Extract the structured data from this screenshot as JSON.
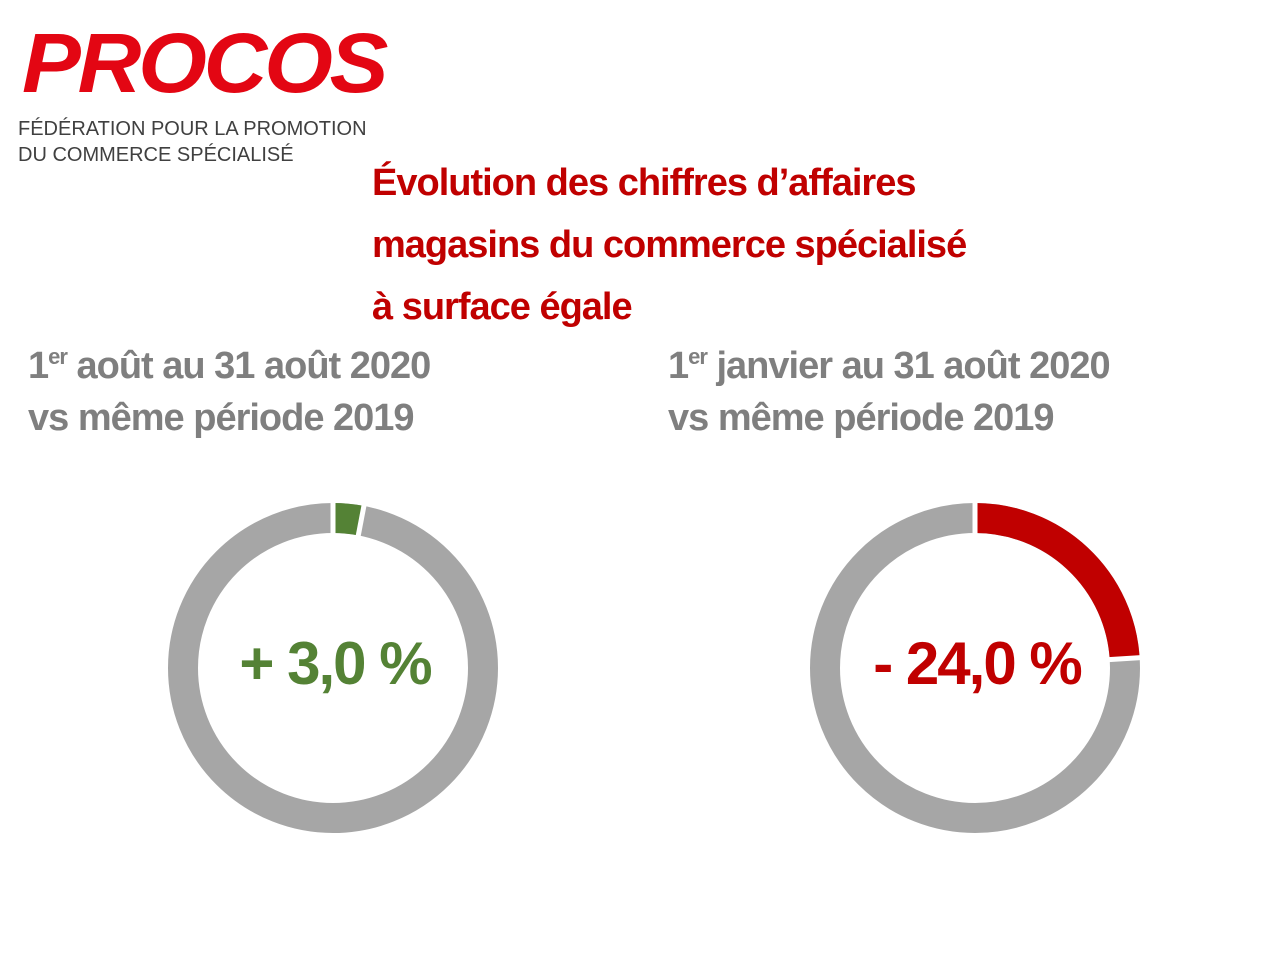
{
  "logo": {
    "name": "PROCOS",
    "tagline": [
      "FÉDÉRATION POUR LA PROMOTION",
      "DU COMMERCE SPÉCIALISÉ"
    ]
  },
  "title": [
    "Évolution des chiffres d’affaires",
    "magasins du commerce spécialisé",
    "à surface égale"
  ],
  "chart_data": [
    {
      "type": "donut",
      "title_parts": [
        "1",
        "er",
        " août au 31 août 2020"
      ],
      "subtitle": "vs même période 2019",
      "values": [
        3.0
      ],
      "value_labels": [
        "+ 3,0 %"
      ],
      "color": "#548235",
      "track_color": "#a6a6a6"
    },
    {
      "type": "donut",
      "title_parts": [
        "1",
        "er",
        " janvier au 31 août 2020"
      ],
      "subtitle": "vs même période 2019",
      "values": [
        -24.0
      ],
      "value_labels": [
        "- 24,0 %"
      ],
      "color": "#c00000",
      "track_color": "#a6a6a6"
    }
  ]
}
